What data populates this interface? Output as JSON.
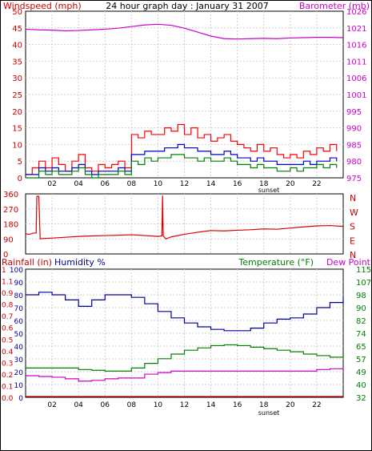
{
  "chart_data": [
    {
      "type": "line",
      "title": "24 hour graph day : January 31 2007",
      "left_axis_label": "Windspeed (mph)",
      "right_axis_label": "Barometer (mb)",
      "left_ylim": [
        0,
        50
      ],
      "left_ticks": [
        "0",
        "5",
        "10",
        "15",
        "20",
        "25",
        "30",
        "35",
        "40",
        "45",
        "50"
      ],
      "right_ylim": [
        975,
        1026
      ],
      "right_ticks": [
        "975",
        "980",
        "985",
        "990",
        "995",
        "1001",
        "1006",
        "1011",
        "1016",
        "1021",
        "1026"
      ],
      "x_ticks": [
        "02",
        "04",
        "06",
        "08",
        "10",
        "12",
        "14",
        "16",
        "18",
        "20",
        "22",
        ""
      ],
      "x_marker": "sunset",
      "grid": true,
      "series": [
        {
          "key": "gust",
          "color": "#ff0000",
          "axis": "left",
          "x": [
            0,
            0.5,
            1,
            1.5,
            2,
            2.5,
            3,
            3.5,
            4,
            4.5,
            5,
            5.5,
            6,
            6.5,
            7,
            7.5,
            8,
            8.5,
            9,
            9.5,
            10,
            10.5,
            11,
            11.5,
            12,
            12.5,
            13,
            13.5,
            14,
            14.5,
            15,
            15.5,
            16,
            16.5,
            17,
            17.5,
            18,
            18.5,
            19,
            19.5,
            20,
            20.5,
            21,
            21.5,
            22,
            22.5,
            23,
            23.5
          ],
          "y": [
            1,
            3,
            5,
            3,
            6,
            4,
            2,
            5,
            7,
            3,
            2,
            4,
            3,
            4,
            5,
            3,
            13,
            12,
            14,
            13,
            13,
            15,
            14,
            16,
            13,
            15,
            12,
            13,
            11,
            12,
            13,
            11,
            10,
            9,
            8,
            10,
            8,
            9,
            7,
            6,
            7,
            6,
            8,
            7,
            9,
            8,
            10,
            8
          ]
        },
        {
          "key": "avg",
          "color": "#0000cc",
          "axis": "left",
          "x": [
            0,
            0.5,
            1,
            1.5,
            2,
            2.5,
            3,
            3.5,
            4,
            4.5,
            5,
            5.5,
            6,
            6.5,
            7,
            7.5,
            8,
            8.5,
            9,
            9.5,
            10,
            10.5,
            11,
            11.5,
            12,
            12.5,
            13,
            13.5,
            14,
            14.5,
            15,
            15.5,
            16,
            16.5,
            17,
            17.5,
            18,
            18.5,
            19,
            19.5,
            20,
            20.5,
            21,
            21.5,
            22,
            22.5,
            23,
            23.5
          ],
          "y": [
            1,
            1,
            3,
            2,
            3,
            2,
            2,
            3,
            4,
            2,
            1,
            2,
            2,
            2,
            3,
            2,
            7,
            7,
            8,
            8,
            8,
            9,
            9,
            10,
            9,
            9,
            8,
            8,
            7,
            7,
            8,
            7,
            6,
            6,
            5,
            6,
            5,
            5,
            4,
            4,
            4,
            4,
            5,
            4,
            5,
            5,
            6,
            5
          ]
        },
        {
          "key": "low",
          "color": "#008000",
          "axis": "left",
          "x": [
            0,
            0.5,
            1,
            1.5,
            2,
            2.5,
            3,
            3.5,
            4,
            4.5,
            5,
            5.5,
            6,
            6.5,
            7,
            7.5,
            8,
            8.5,
            9,
            9.5,
            10,
            10.5,
            11,
            11.5,
            12,
            12.5,
            13,
            13.5,
            14,
            14.5,
            15,
            15.5,
            16,
            16.5,
            17,
            17.5,
            18,
            18.5,
            19,
            19.5,
            20,
            20.5,
            21,
            21.5,
            22,
            22.5,
            23,
            23.5
          ],
          "y": [
            0,
            0,
            2,
            1,
            2,
            1,
            1,
            2,
            3,
            1,
            0,
            1,
            1,
            1,
            2,
            1,
            5,
            4,
            6,
            5,
            6,
            6,
            7,
            7,
            6,
            6,
            5,
            6,
            5,
            5,
            6,
            5,
            4,
            4,
            3,
            4,
            3,
            3,
            2,
            2,
            3,
            2,
            3,
            3,
            4,
            3,
            4,
            3
          ]
        },
        {
          "key": "barometer",
          "color": "#cc00cc",
          "axis": "right",
          "x": [
            0,
            1,
            2,
            3,
            4,
            5,
            6,
            7,
            8,
            9,
            10,
            11,
            12,
            13,
            14,
            15,
            16,
            17,
            18,
            19,
            20,
            21,
            22,
            23,
            24
          ],
          "y": [
            1020.5,
            1020.3,
            1020.2,
            1020.0,
            1020.1,
            1020.3,
            1020.5,
            1020.8,
            1021.3,
            1021.8,
            1022.0,
            1021.7,
            1020.8,
            1019.6,
            1018.4,
            1017.6,
            1017.5,
            1017.6,
            1017.7,
            1017.6,
            1017.8,
            1017.9,
            1018.0,
            1018.0,
            1017.9
          ]
        }
      ]
    },
    {
      "type": "line",
      "title": "",
      "left_ticks": [
        "360",
        "270",
        "180",
        "90",
        "0"
      ],
      "left_ylim": [
        0,
        360
      ],
      "right_ticks": [
        "N",
        "W",
        "S",
        "E",
        "N"
      ],
      "x_ticks": [],
      "grid": true,
      "series": [
        {
          "key": "direction",
          "color": "#dd0000",
          "axis": "left",
          "x": [
            0,
            0.3,
            0.6,
            0.8,
            0.85,
            1.0,
            1.1,
            1.3,
            2,
            3,
            4,
            5,
            6,
            7,
            8,
            9,
            10,
            10.3,
            10.35,
            10.4,
            10.6,
            11,
            12,
            13,
            14,
            15,
            16,
            17,
            18,
            19,
            20,
            21,
            22,
            23,
            24
          ],
          "y": [
            120,
            118,
            125,
            125,
            345,
            345,
            90,
            92,
            95,
            100,
            105,
            108,
            110,
            112,
            115,
            110,
            105,
            108,
            350,
            108,
            90,
            102,
            118,
            130,
            140,
            138,
            142,
            145,
            150,
            148,
            155,
            162,
            168,
            170,
            165
          ]
        }
      ]
    },
    {
      "type": "line",
      "title": "",
      "labels_left": [
        "Rainfall (in)",
        "Humidity %"
      ],
      "labels_right": [
        "Temperature (°F)",
        "Dew Point"
      ],
      "rain_ticks": [
        "0.0",
        "0.1",
        "0.2",
        "0.3",
        "0.4",
        "0.5",
        "0.6",
        "0.7",
        "0.8",
        "0.9",
        "1.1",
        "1"
      ],
      "rain_ylim": [
        0,
        1.2
      ],
      "humidity_ticks": [
        "0",
        "10",
        "20",
        "30",
        "40",
        "50",
        "60",
        "70",
        "80",
        "90",
        "100"
      ],
      "humidity_ylim": [
        0,
        100
      ],
      "right_ticks": [
        "32",
        "40",
        "49",
        "57",
        "65",
        "74",
        "82",
        "90",
        "98",
        "107",
        "115"
      ],
      "right_ylim": [
        32,
        115
      ],
      "x_ticks": [
        "02",
        "04",
        "06",
        "08",
        "10",
        "12",
        "14",
        "16",
        "18",
        "20",
        "22",
        ""
      ],
      "x_marker": "sunset",
      "grid": true,
      "series": [
        {
          "key": "humidity",
          "color": "#000099",
          "axis": "humidity",
          "x": [
            0,
            1,
            2,
            3,
            4,
            5,
            6,
            7,
            8,
            9,
            10,
            11,
            12,
            13,
            14,
            15,
            16,
            17,
            18,
            19,
            20,
            21,
            22,
            23,
            24
          ],
          "y": [
            80,
            82,
            80,
            76,
            71,
            76,
            80,
            80,
            78,
            73,
            67,
            62,
            58,
            55,
            53,
            52,
            52,
            54,
            58,
            61,
            62,
            65,
            70,
            74,
            78
          ]
        },
        {
          "key": "temperature",
          "color": "#008000",
          "axis": "right",
          "x": [
            0,
            1,
            2,
            3,
            4,
            5,
            6,
            7,
            8,
            9,
            10,
            11,
            12,
            13,
            14,
            15,
            16,
            17,
            18,
            19,
            20,
            21,
            22,
            23,
            24
          ],
          "y": [
            51,
            51,
            51,
            51,
            50,
            49.5,
            49,
            49,
            51,
            54,
            57,
            60,
            62.5,
            64,
            65.5,
            66,
            65.5,
            64.5,
            63.5,
            62.5,
            61.5,
            60,
            59,
            58,
            57
          ]
        },
        {
          "key": "dewpoint",
          "color": "#cc00cc",
          "axis": "right",
          "x": [
            0,
            1,
            2,
            3,
            4,
            5,
            6,
            7,
            8,
            9,
            10,
            11,
            12,
            13,
            14,
            15,
            16,
            17,
            18,
            19,
            20,
            21,
            22,
            23,
            24
          ],
          "y": [
            46,
            45.5,
            45,
            44,
            42.5,
            43,
            44,
            44.5,
            44.5,
            47,
            48,
            49,
            49,
            49,
            49,
            49,
            49,
            49,
            49,
            49,
            49,
            49,
            50,
            50.5,
            51
          ]
        },
        {
          "key": "rainfall",
          "color": "#cc0000",
          "axis": "rain",
          "x": [
            0,
            24
          ],
          "y": [
            0,
            0
          ]
        }
      ]
    }
  ]
}
